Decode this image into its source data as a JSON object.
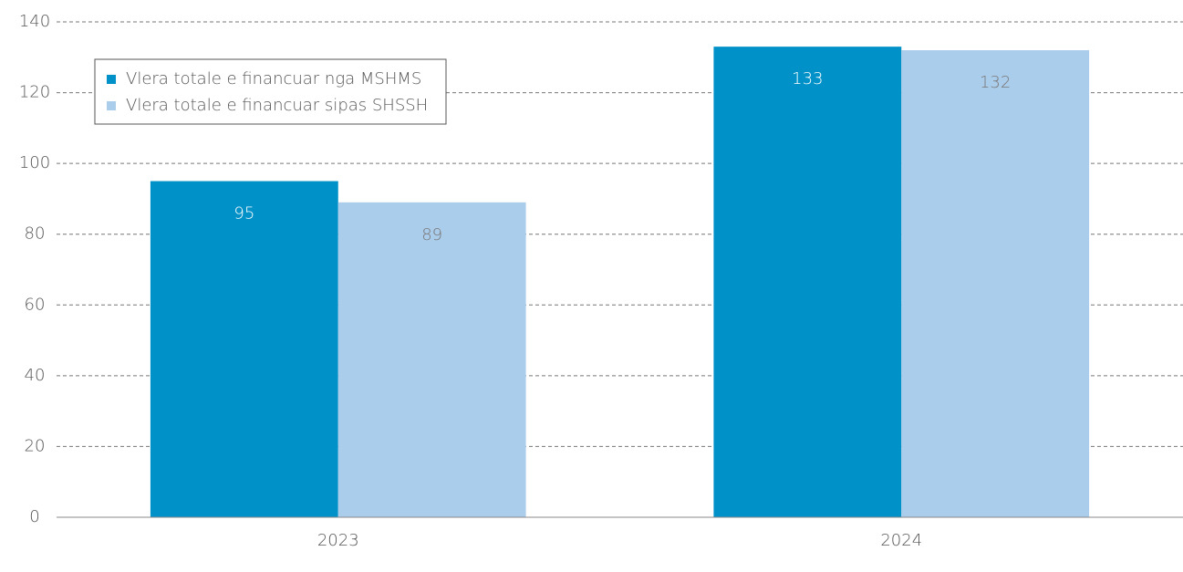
{
  "chart_data": {
    "type": "bar",
    "categories": [
      "2023",
      "2024"
    ],
    "series": [
      {
        "name": "Vlera totale e financuar nga MSHMS",
        "color": "#0091c8",
        "values": [
          95,
          133
        ]
      },
      {
        "name": "Vlera totale e financuar sipas SHSSH",
        "color": "#abcdec",
        "values": [
          89,
          132
        ]
      }
    ],
    "ylim": [
      0,
      140
    ],
    "yticks": [
      0,
      20,
      40,
      60,
      80,
      100,
      120,
      140
    ],
    "grid": true,
    "legend": "upper left"
  }
}
